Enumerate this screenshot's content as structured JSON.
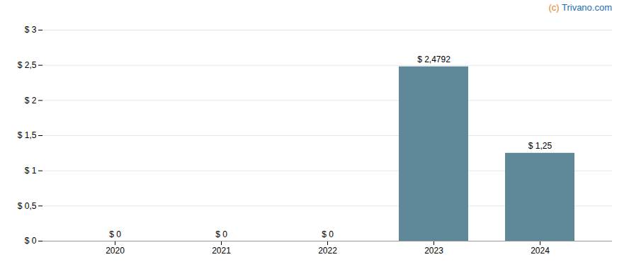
{
  "chart_data": {
    "type": "bar",
    "categories": [
      "2020",
      "2021",
      "2022",
      "2023",
      "2024"
    ],
    "values": [
      0,
      0,
      0,
      2.4792,
      1.25
    ],
    "value_labels": [
      "$ 0",
      "$ 0",
      "$ 0",
      "$ 2,4792",
      "$ 1,25"
    ],
    "data_labels": true,
    "color": "#5f8898",
    "ylim": [
      0,
      3.0
    ],
    "yticks": [
      {
        "value": 0,
        "label": "$ 0"
      },
      {
        "value": 0.5,
        "label": "$ 0,5"
      },
      {
        "value": 1.0,
        "label": "$ 1"
      },
      {
        "value": 1.5,
        "label": "$ 1,5"
      },
      {
        "value": 2.0,
        "label": "$ 2"
      },
      {
        "value": 2.5,
        "label": "$ 2,5"
      },
      {
        "value": 3.0,
        "label": "$ 3"
      }
    ],
    "grid": true,
    "annotations": [
      {
        "text": "(c) ",
        "color": "#e8822a"
      },
      {
        "text": "Trivano.com",
        "color": "#1a6eb5"
      }
    ]
  }
}
